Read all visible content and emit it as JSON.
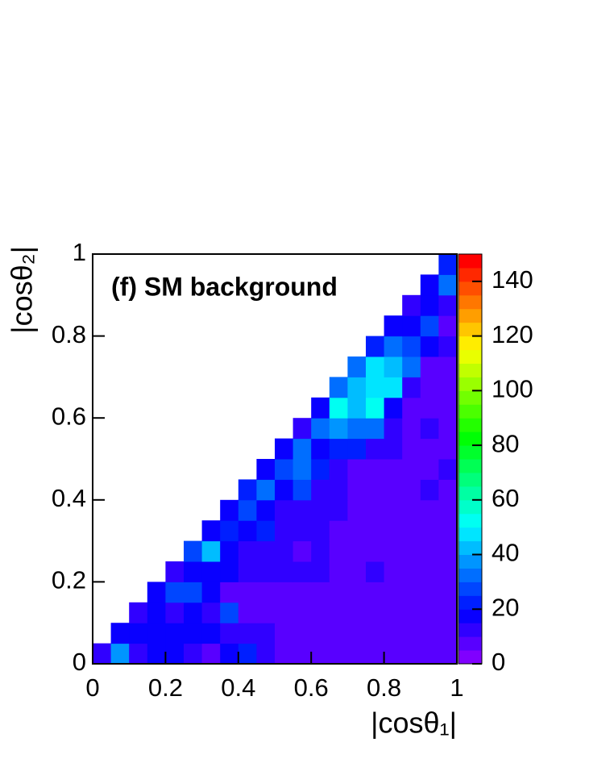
{
  "chart_data": {
    "type": "heatmap",
    "title": "(f) SM background",
    "xlabel": "|cosθ₁|",
    "ylabel": "|cosθ₂|",
    "xlim": [
      0,
      1
    ],
    "ylim": [
      0,
      1
    ],
    "xticks": [
      0,
      0.2,
      0.4,
      0.6,
      0.8,
      1
    ],
    "yticks": [
      0,
      0.2,
      0.4,
      0.6,
      0.8,
      1
    ],
    "zlim": [
      0,
      150
    ],
    "zticks": [
      0,
      20,
      40,
      60,
      80,
      100,
      120,
      140
    ],
    "colormap": {
      "hue_range": [
        270,
        0
      ],
      "bands": 30
    },
    "z": [
      [
        10,
        38,
        12,
        18,
        18,
        10,
        7,
        15,
        20,
        14,
        5,
        5,
        5,
        5,
        5,
        5,
        5,
        5,
        5,
        5
      ],
      [
        null,
        18,
        16,
        18,
        17,
        15,
        18,
        12,
        12,
        10,
        5,
        5,
        5,
        5,
        5,
        5,
        5,
        5,
        5,
        5
      ],
      [
        null,
        null,
        12,
        16,
        13,
        16,
        12,
        25,
        6,
        6,
        6,
        6,
        6,
        6,
        6,
        6,
        6,
        6,
        6,
        6
      ],
      [
        null,
        null,
        null,
        18,
        28,
        28,
        18,
        7,
        7,
        7,
        7,
        7,
        7,
        7,
        7,
        7,
        7,
        7,
        7,
        7
      ],
      [
        null,
        null,
        null,
        null,
        12,
        16,
        17,
        18,
        12,
        12,
        12,
        12,
        10,
        6,
        6,
        13,
        6,
        6,
        6,
        6
      ],
      [
        null,
        null,
        null,
        null,
        null,
        25,
        42,
        18,
        12,
        12,
        12,
        8,
        12,
        6,
        6,
        6,
        6,
        6,
        6,
        6
      ],
      [
        null,
        null,
        null,
        null,
        null,
        null,
        16,
        22,
        18,
        22,
        12,
        12,
        12,
        6,
        6,
        6,
        6,
        6,
        6,
        6
      ],
      [
        null,
        null,
        null,
        null,
        null,
        null,
        null,
        18,
        25,
        18,
        12,
        12,
        12,
        12,
        6,
        6,
        6,
        6,
        6,
        6
      ],
      [
        null,
        null,
        null,
        null,
        null,
        null,
        null,
        null,
        20,
        33,
        18,
        25,
        12,
        12,
        7,
        7,
        7,
        7,
        12,
        7
      ],
      [
        null,
        null,
        null,
        null,
        null,
        null,
        null,
        null,
        null,
        18,
        25,
        33,
        22,
        12,
        7,
        7,
        7,
        7,
        7,
        12
      ],
      [
        null,
        null,
        null,
        null,
        null,
        null,
        null,
        null,
        null,
        null,
        18,
        33,
        18,
        23,
        23,
        14,
        14,
        8,
        8,
        8
      ],
      [
        null,
        null,
        null,
        null,
        null,
        null,
        null,
        null,
        null,
        null,
        null,
        12,
        33,
        38,
        33,
        33,
        12,
        8,
        14,
        8
      ],
      [
        null,
        null,
        null,
        null,
        null,
        null,
        null,
        null,
        null,
        null,
        null,
        null,
        18,
        52,
        42,
        50,
        18,
        8,
        8,
        8
      ],
      [
        null,
        null,
        null,
        null,
        null,
        null,
        null,
        null,
        null,
        null,
        null,
        null,
        null,
        33,
        42,
        48,
        48,
        14,
        8,
        8
      ],
      [
        null,
        null,
        null,
        null,
        null,
        null,
        null,
        null,
        null,
        null,
        null,
        null,
        null,
        null,
        33,
        48,
        40,
        33,
        8,
        8
      ],
      [
        null,
        null,
        null,
        null,
        null,
        null,
        null,
        null,
        null,
        null,
        null,
        null,
        null,
        null,
        null,
        23,
        33,
        28,
        18,
        12
      ],
      [
        null,
        null,
        null,
        null,
        null,
        null,
        null,
        null,
        null,
        null,
        null,
        null,
        null,
        null,
        null,
        null,
        16,
        18,
        28,
        8
      ],
      [
        null,
        null,
        null,
        null,
        null,
        null,
        null,
        null,
        null,
        null,
        null,
        null,
        null,
        null,
        null,
        null,
        null,
        12,
        18,
        14
      ],
      [
        null,
        null,
        null,
        null,
        null,
        null,
        null,
        null,
        null,
        null,
        null,
        null,
        null,
        null,
        null,
        null,
        null,
        null,
        18,
        33
      ],
      [
        null,
        null,
        null,
        null,
        null,
        null,
        null,
        null,
        null,
        null,
        null,
        null,
        null,
        null,
        null,
        null,
        null,
        null,
        null,
        23
      ]
    ]
  }
}
